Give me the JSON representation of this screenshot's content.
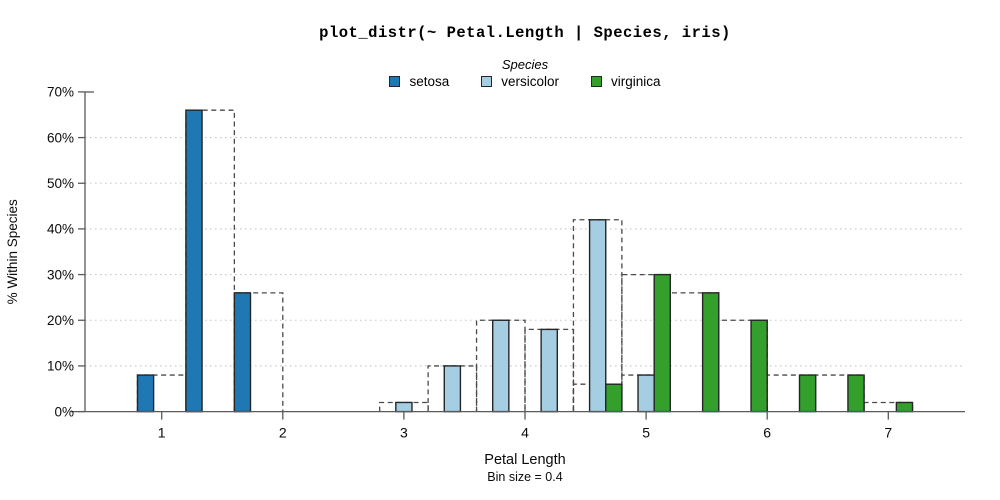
{
  "title": "plot_distr(~ Petal.Length | Species, iris)",
  "legend": {
    "title": "Species",
    "items": [
      {
        "label": "setosa",
        "color": "#1f78b4"
      },
      {
        "label": "versicolor",
        "color": "#a6cee3"
      },
      {
        "label": "virginica",
        "color": "#33a02c"
      }
    ]
  },
  "axes": {
    "x": {
      "label": "Petal Length",
      "sublabel": "Bin size = 0.4",
      "ticks": [
        1,
        2,
        3,
        4,
        5,
        6,
        7
      ]
    },
    "y": {
      "label": "% Within Species",
      "ticks": [
        {
          "value": 0,
          "label": "0%"
        },
        {
          "value": 10,
          "label": "10%"
        },
        {
          "value": 20,
          "label": "20%"
        },
        {
          "value": 30,
          "label": "30%"
        },
        {
          "value": 40,
          "label": "40%"
        },
        {
          "value": 50,
          "label": "50%"
        },
        {
          "value": 60,
          "label": "60%"
        },
        {
          "value": 70,
          "label": "70%"
        }
      ]
    }
  },
  "colors": {
    "grid": "#c8c8c8",
    "outline": "#4a4a4a",
    "axis": "#5a5a5a",
    "bar_border": "#262626",
    "text": "#0a0a0a"
  },
  "chart_data": {
    "type": "bar",
    "title": "plot_distr(~ Petal.Length | Species, iris)",
    "xlabel": "Petal Length",
    "ylabel": "% Within Species",
    "bin_size": 0.4,
    "xlim": [
      0.37,
      7.63
    ],
    "ylim": [
      0,
      70
    ],
    "grid": "dotted horizontal lines at 10%-60%",
    "legend_position": "top center",
    "outline_style": "dashed rectangle over each full bin",
    "series": [
      {
        "name": "setosa",
        "color": "#1f78b4",
        "slot": 0,
        "bins": [
          {
            "start": 0.8,
            "end": 1.2,
            "pct": 8
          },
          {
            "start": 1.2,
            "end": 1.6,
            "pct": 66
          },
          {
            "start": 1.6,
            "end": 2.0,
            "pct": 26
          }
        ]
      },
      {
        "name": "versicolor",
        "color": "#a6cee3",
        "slot": 1,
        "bins": [
          {
            "start": 2.8,
            "end": 3.2,
            "pct": 2
          },
          {
            "start": 3.2,
            "end": 3.6,
            "pct": 10
          },
          {
            "start": 3.6,
            "end": 4.0,
            "pct": 20
          },
          {
            "start": 4.0,
            "end": 4.4,
            "pct": 18
          },
          {
            "start": 4.4,
            "end": 4.8,
            "pct": 42
          },
          {
            "start": 4.8,
            "end": 5.2,
            "pct": 8
          }
        ]
      },
      {
        "name": "virginica",
        "color": "#33a02c",
        "slot": 2,
        "bins": [
          {
            "start": 4.4,
            "end": 4.8,
            "pct": 6
          },
          {
            "start": 4.8,
            "end": 5.2,
            "pct": 30
          },
          {
            "start": 5.2,
            "end": 5.6,
            "pct": 26
          },
          {
            "start": 5.6,
            "end": 6.0,
            "pct": 20
          },
          {
            "start": 6.0,
            "end": 6.4,
            "pct": 8
          },
          {
            "start": 6.4,
            "end": 6.8,
            "pct": 8
          },
          {
            "start": 6.8,
            "end": 7.2,
            "pct": 2
          }
        ]
      }
    ]
  }
}
